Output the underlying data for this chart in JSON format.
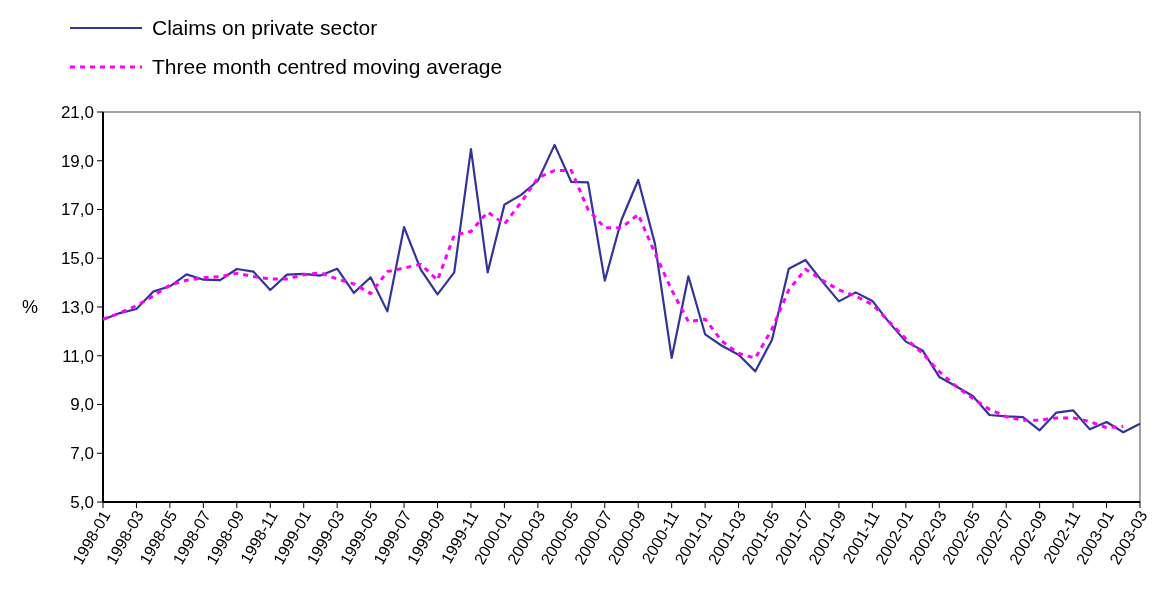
{
  "chart_data": {
    "type": "line",
    "ylabel": "%",
    "legend": "top left",
    "categories": [
      "1998-01",
      null,
      "1998-03",
      null,
      "1998-05",
      null,
      "1998-07",
      null,
      "1998-09",
      null,
      "1998-11",
      null,
      "1999-01",
      null,
      "1999-03",
      null,
      "1999-05",
      null,
      "1999-07",
      null,
      "1999-09",
      null,
      "1999-11",
      null,
      "2000-01",
      null,
      "2000-03",
      null,
      "2000-05",
      null,
      "2000-07",
      null,
      "2000-09",
      null,
      "2000-11",
      null,
      "2001-01",
      null,
      "2001-03",
      null,
      "2001-05",
      null,
      "2001-07",
      null,
      "2001-09",
      null,
      "2001-11",
      null,
      "2002-01",
      null,
      "2002-03",
      null,
      "2002-05",
      null,
      "2002-07",
      null,
      "2002-09",
      null,
      "2002-11",
      null,
      "2003-01",
      null,
      "2003-03"
    ],
    "ylim": [
      5,
      21
    ],
    "yticks": [
      {
        "value": 5,
        "label": "5,0"
      },
      {
        "value": 7,
        "label": "7,0"
      },
      {
        "value": 9,
        "label": "9,0"
      },
      {
        "value": 11,
        "label": "11,0"
      },
      {
        "value": 13,
        "label": "13,0"
      },
      {
        "value": 15,
        "label": "15,0"
      },
      {
        "value": 17,
        "label": "17,0"
      },
      {
        "value": 19,
        "label": "19,0"
      },
      {
        "value": 21,
        "label": "21,0"
      }
    ],
    "series": [
      {
        "name": "Claims on private sector",
        "color": "#333399",
        "line_style": "solid",
        "values": [
          12.48,
          12.75,
          12.92,
          13.63,
          13.85,
          14.34,
          14.12,
          14.1,
          14.56,
          14.45,
          13.7,
          14.33,
          14.36,
          14.29,
          14.57,
          13.58,
          14.22,
          12.82,
          16.28,
          14.53,
          13.52,
          14.42,
          19.48,
          14.42,
          17.2,
          17.6,
          18.18,
          19.65,
          18.13,
          18.11,
          14.08,
          16.58,
          18.21,
          15.59,
          10.91,
          14.26,
          11.88,
          11.41,
          11.04,
          10.36,
          11.66,
          14.57,
          14.93,
          14.05,
          13.23,
          13.6,
          13.25,
          12.37,
          11.58,
          11.22,
          10.13,
          9.75,
          9.35,
          8.57,
          8.51,
          8.48,
          7.94,
          8.67,
          8.76,
          7.98,
          8.28,
          7.86,
          8.21
        ]
      },
      {
        "name": "Three month centred moving average",
        "color": "#ff00ff",
        "line_style": "dashed",
        "values": [
          12.5,
          12.75,
          13.05,
          13.45,
          13.9,
          14.1,
          14.2,
          14.25,
          14.38,
          14.25,
          14.15,
          14.15,
          14.32,
          14.4,
          14.15,
          13.95,
          13.55,
          14.45,
          14.6,
          14.75,
          14.1,
          15.95,
          16.1,
          16.9,
          16.4,
          17.3,
          18.3,
          18.6,
          18.6,
          17.0,
          16.25,
          16.25,
          16.8,
          15.2,
          13.7,
          12.4,
          12.5,
          11.6,
          11.1,
          10.9,
          12.1,
          13.7,
          14.55,
          14.1,
          13.7,
          13.45,
          13.1,
          12.4,
          11.7,
          11.1,
          10.35,
          9.75,
          9.25,
          8.8,
          8.5,
          8.35,
          8.35,
          8.45,
          8.45,
          8.3,
          8.05,
          8.1,
          null
        ]
      }
    ]
  }
}
